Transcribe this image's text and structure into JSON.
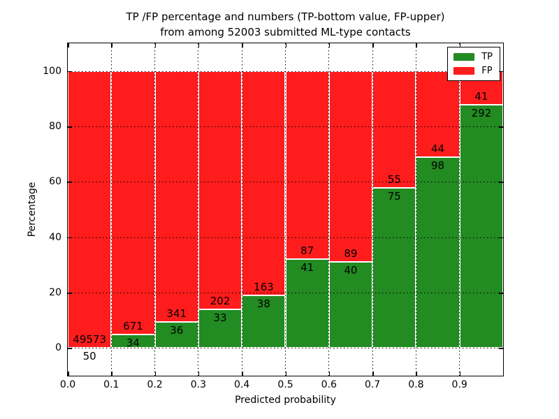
{
  "chart_data": {
    "type": "bar",
    "stacked": true,
    "title": "TP /FP percentage and numbers (TP-bottom value, FP-upper)\nfrom among 52003 submitted ML-type contacts",
    "title_line1": "TP /FP percentage and numbers (TP-bottom value, FP-upper)",
    "title_line2": "from among 52003 submitted ML-type contacts",
    "total_submitted": 52003,
    "xlabel": "Predicted probability",
    "ylabel": "Percentage",
    "x_tick_labels": [
      "0.0",
      "0.1",
      "0.2",
      "0.3",
      "0.4",
      "0.5",
      "0.6",
      "0.7",
      "0.8",
      "0.9"
    ],
    "y_tick_values": [
      0,
      20,
      40,
      60,
      80,
      100
    ],
    "xlim": [
      0.0,
      1.0
    ],
    "ylim": [
      -10,
      110
    ],
    "grid": "dotted, on top of bars",
    "bin_width": 0.1,
    "bins": [
      {
        "x_start": 0.0,
        "tp": 50,
        "fp": 49573,
        "tp_percent": 0.1
      },
      {
        "x_start": 0.1,
        "tp": 34,
        "fp": 671,
        "tp_percent": 4.8
      },
      {
        "x_start": 0.2,
        "tp": 36,
        "fp": 341,
        "tp_percent": 9.5
      },
      {
        "x_start": 0.3,
        "tp": 33,
        "fp": 202,
        "tp_percent": 14.0
      },
      {
        "x_start": 0.4,
        "tp": 38,
        "fp": 163,
        "tp_percent": 18.9
      },
      {
        "x_start": 0.5,
        "tp": 41,
        "fp": 87,
        "tp_percent": 32.0
      },
      {
        "x_start": 0.6,
        "tp": 40,
        "fp": 89,
        "tp_percent": 31.0
      },
      {
        "x_start": 0.7,
        "tp": 75,
        "fp": 55,
        "tp_percent": 57.7
      },
      {
        "x_start": 0.8,
        "tp": 98,
        "fp": 44,
        "tp_percent": 69.0
      },
      {
        "x_start": 0.9,
        "tp": 292,
        "fp": 41,
        "tp_percent": 87.7
      }
    ],
    "series": [
      {
        "name": "TP",
        "color": "#228b22",
        "position": "bottom"
      },
      {
        "name": "FP",
        "color": "#ff1c1c",
        "position": "top"
      }
    ],
    "legend": {
      "position": "upper right",
      "entries": [
        {
          "label": "TP",
          "color": "#228b22"
        },
        {
          "label": "FP",
          "color": "#ff1c1c"
        }
      ]
    },
    "colors": {
      "axes_frame": "#000000",
      "bar_edge": "#ffffff",
      "background": "#ffffff"
    }
  }
}
